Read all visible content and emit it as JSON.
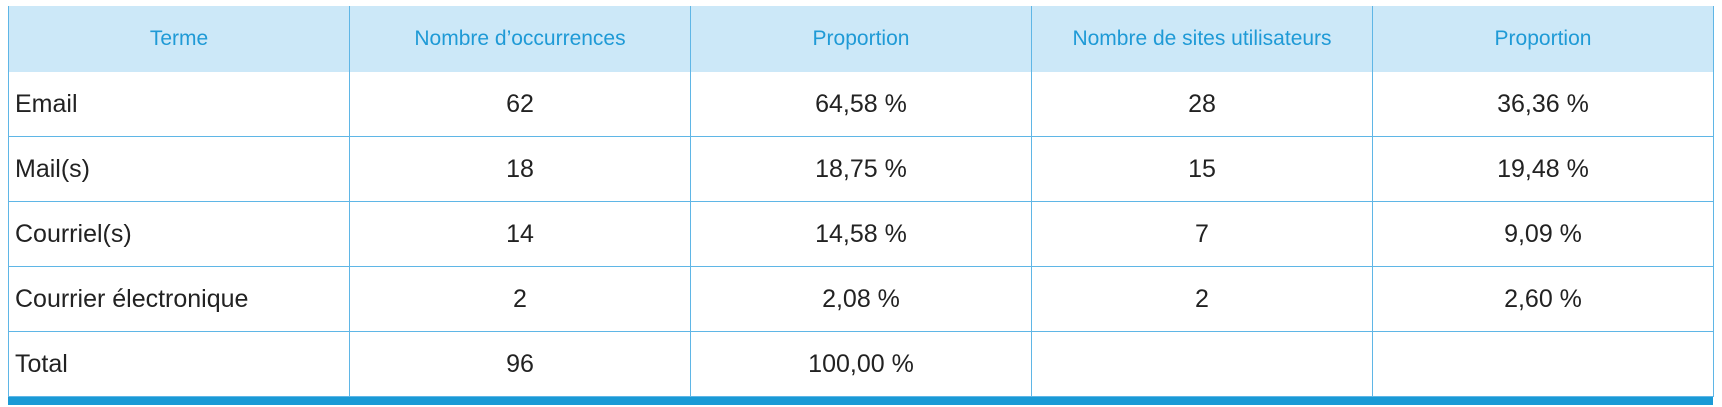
{
  "table": {
    "header": [
      "Terme",
      "Nombre d’occurrences",
      "Proportion",
      "Nombre de sites utilisateurs",
      "Proportion"
    ],
    "rows": [
      [
        "Email",
        "62",
        "64,58 %",
        "28",
        "36,36 %"
      ],
      [
        "Mail(s)",
        "18",
        "18,75 %",
        "15",
        "19,48 %"
      ],
      [
        "Courriel(s)",
        "14",
        "14,58 %",
        "7",
        "9,09 %"
      ],
      [
        "Courrier électronique",
        "2",
        "2,08 %",
        "2",
        "2,60 %"
      ],
      [
        "Total",
        "96",
        "100,00 %"
      ]
    ]
  }
}
